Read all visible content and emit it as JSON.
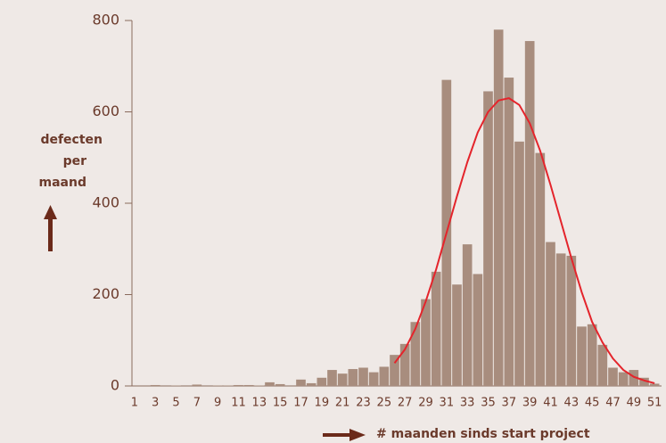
{
  "chart_data": {
    "type": "bar",
    "categories": [
      "1",
      null,
      "3",
      null,
      "5",
      null,
      "7",
      null,
      "9",
      null,
      "11",
      null,
      "13",
      null,
      "15",
      null,
      "17",
      null,
      "19",
      null,
      "21",
      null,
      "23",
      null,
      "25",
      null,
      "27",
      null,
      "29",
      null,
      "31",
      null,
      "33",
      null,
      "35",
      null,
      "37",
      null,
      "39",
      null,
      "41",
      null,
      "43",
      null,
      "45",
      null,
      "47",
      null,
      "49",
      null,
      "51"
    ],
    "series": [
      {
        "type": "bar",
        "color": "#a88d7e",
        "values": [
          0,
          0,
          2,
          0,
          1,
          0,
          3,
          0,
          1,
          1,
          2,
          2,
          1,
          8,
          4,
          0,
          14,
          6,
          18,
          35,
          27,
          37,
          40,
          30,
          42,
          68,
          92,
          140,
          190,
          250,
          670,
          222,
          310,
          245,
          645,
          780,
          675,
          535,
          755,
          510,
          315,
          290,
          285,
          130,
          135,
          90,
          40,
          30,
          35,
          18,
          5
        ]
      },
      {
        "type": "line",
        "color": "#e4242b",
        "values": [
          null,
          null,
          null,
          null,
          null,
          null,
          null,
          null,
          null,
          null,
          null,
          null,
          null,
          null,
          null,
          null,
          null,
          null,
          null,
          null,
          null,
          null,
          null,
          null,
          null,
          50,
          80,
          125,
          185,
          255,
          335,
          415,
          490,
          555,
          600,
          625,
          630,
          615,
          575,
          515,
          440,
          360,
          280,
          205,
          140,
          95,
          60,
          35,
          20,
          12,
          6
        ]
      }
    ],
    "ylim": [
      0,
      800
    ],
    "yticks": [
      0,
      200,
      400,
      600,
      800
    ],
    "y_label": [
      "defecten",
      "per",
      "maand"
    ],
    "x_label": "# maanden sinds start project"
  }
}
